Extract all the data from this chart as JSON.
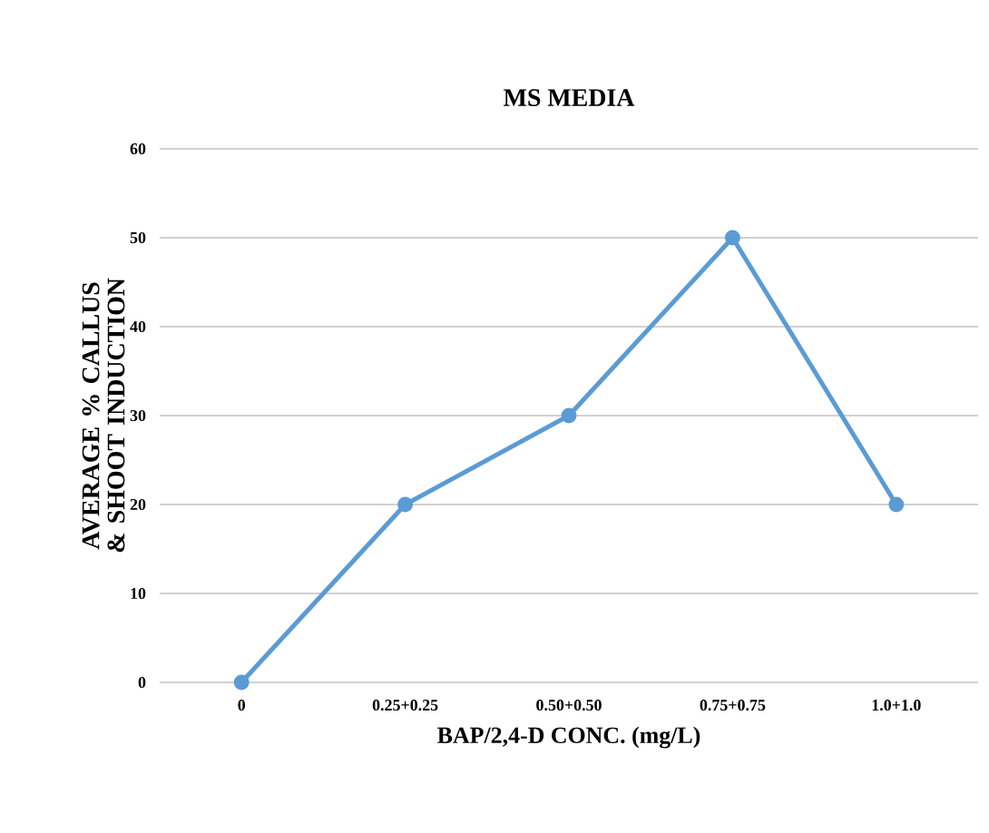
{
  "chart_data": {
    "type": "line",
    "title": "MS MEDIA",
    "xlabel": "BAP/2,4-D CONC. (mg/L)",
    "ylabel": "AVERAGE % CALLUS & SHOOT INDUCTION",
    "categories": [
      "0",
      "0.25+0.25",
      "0.50+0.50",
      "0.75+0.75",
      "1.0+1.0"
    ],
    "series": [
      {
        "color": "#5b9bd5",
        "values": [
          0,
          20,
          30,
          50,
          20
        ]
      }
    ],
    "ylim": [
      0,
      60
    ],
    "yticks": [
      0,
      10,
      20,
      30,
      40,
      50,
      60
    ],
    "grid": "y",
    "marker": "circle",
    "line_style": "solid"
  }
}
